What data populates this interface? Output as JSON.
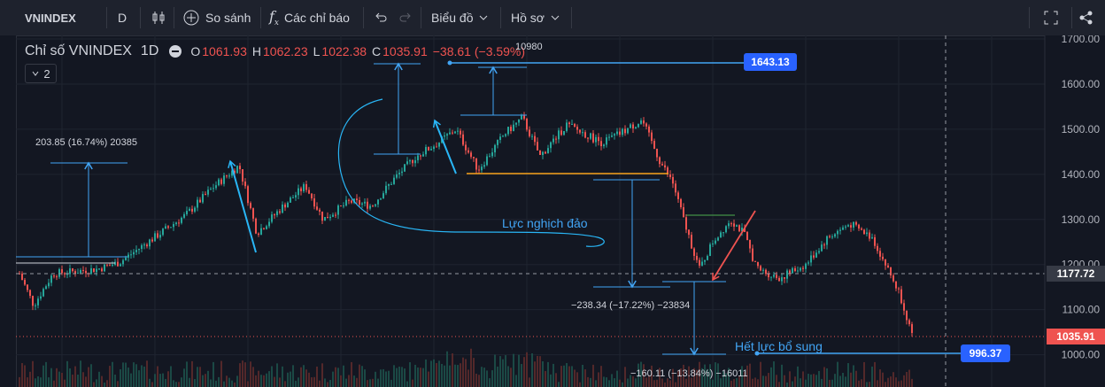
{
  "toolbar": {
    "symbol": "VNINDEX",
    "interval": "D",
    "compare_label": "So sánh",
    "indicators_label": "Các chỉ báo",
    "chart_label": "Biểu đồ",
    "profile_label": "Hồ sơ"
  },
  "legend": {
    "title": "Chỉ số VNINDEX",
    "interval": "1D",
    "open_key": "O",
    "open_val": "1061.93",
    "high_key": "H",
    "high_val": "1062.23",
    "low_key": "L",
    "low_val": "1022.38",
    "close_key": "C",
    "close_val": "1035.91",
    "change": "−38.61 (−3.59%)",
    "collapse_count": "2"
  },
  "axis": {
    "ticks": [
      "1700.00",
      "1600.00",
      "1500.00",
      "1400.00",
      "1300.00",
      "1200.00",
      "1100.00",
      "1000.00"
    ],
    "crosshair_value": "1177.72",
    "last_price": "1035.91"
  },
  "badges": {
    "target_high": "1643.13",
    "target_low": "996.37"
  },
  "annotations": {
    "measure1": "203.85 (16.74%) 20385",
    "measure_top": "10980",
    "measure2": "−238.34 (−17.22%) −23834",
    "measure3": "−160.11 (−13.84%) −16011",
    "reversal_label": "Lực nghịch đảo",
    "exhaustion_label": "Hết lực bổ sung"
  },
  "colors": {
    "up": "#26a69a",
    "down": "#ef5350",
    "accent": "#2962ff",
    "drawing": "#42a5f5",
    "orange": "#f7a21b",
    "green_line": "#4caf50"
  },
  "icons": [
    "candles-icon",
    "add-circle-icon",
    "fx-icon",
    "undo-icon",
    "redo-icon",
    "chevron-down-icon",
    "fullscreen-icon",
    "share-icon"
  ]
}
